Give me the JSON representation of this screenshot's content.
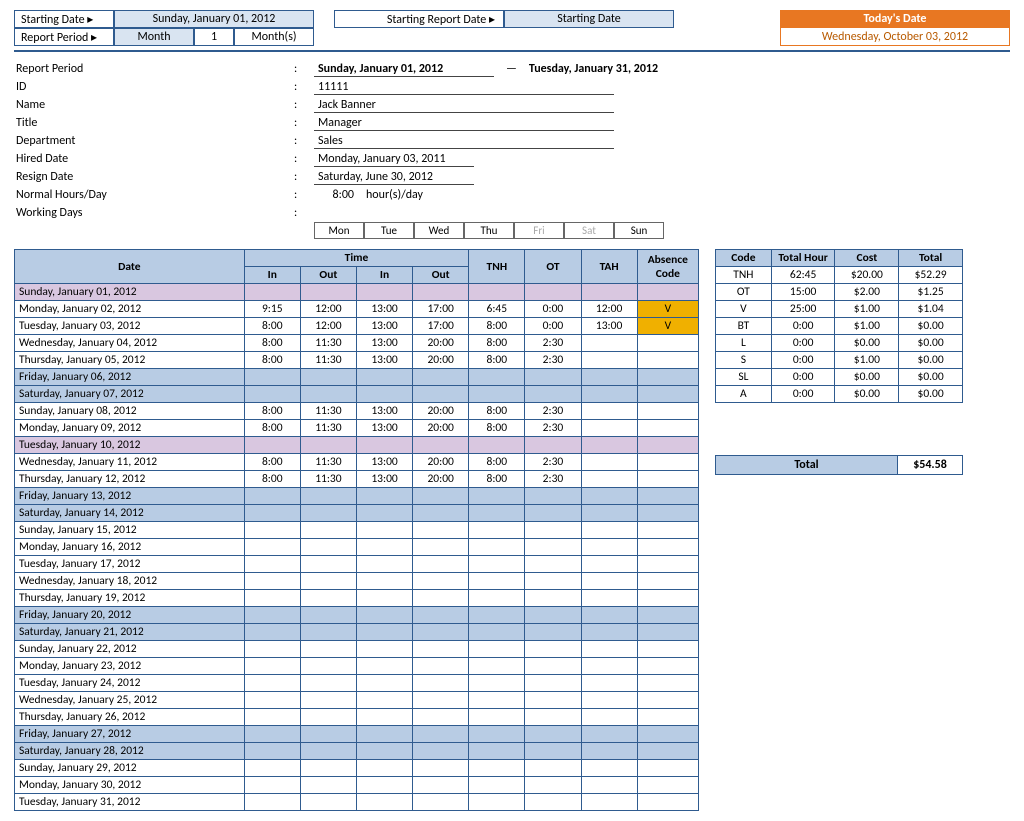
{
  "header": {
    "starting_date_label": "Starting Date ▸",
    "starting_date_value": "Sunday, January 01, 2012",
    "starting_report_label": "Starting Report Date ▸",
    "starting_report_value": "Starting Date",
    "report_period_label": "Report Period ▸",
    "period_unit": "Month",
    "period_qty": "1",
    "period_suffix": "Month(s)",
    "today_label": "Today's Date",
    "today_value": "Wednesday, October 03, 2012"
  },
  "info": {
    "report_period_lbl": "Report Period",
    "report_period_from": "Sunday, January 01, 2012",
    "report_period_sep": "—",
    "report_period_to": "Tuesday, January 31, 2012",
    "id_lbl": "ID",
    "id_val": "11111",
    "name_lbl": "Name",
    "name_val": "Jack Banner",
    "title_lbl": "Title",
    "title_val": "Manager",
    "dept_lbl": "Department",
    "dept_val": "Sales",
    "hired_lbl": "Hired Date",
    "hired_val": "Monday, January 03, 2011",
    "resign_lbl": "Resign Date",
    "resign_val": "Saturday, June 30, 2012",
    "hours_lbl": "Normal Hours/Day",
    "hours_val": "8:00",
    "hours_suffix": "hour(s)/day",
    "days_lbl": "Working Days",
    "days": [
      {
        "d": "Mon",
        "on": true
      },
      {
        "d": "Tue",
        "on": true
      },
      {
        "d": "Wed",
        "on": true
      },
      {
        "d": "Thu",
        "on": true
      },
      {
        "d": "Fri",
        "on": false
      },
      {
        "d": "Sat",
        "on": false
      },
      {
        "d": "Sun",
        "on": true
      }
    ]
  },
  "main_table": {
    "headers": {
      "date": "Date",
      "time": "Time",
      "in": "In",
      "out": "Out",
      "tnh": "TNH",
      "ot": "OT",
      "tah": "TAH",
      "abs": "Absence Code"
    },
    "rows": [
      {
        "date": "Sunday, January 01, 2012",
        "cls": "purple"
      },
      {
        "date": "Monday, January 02, 2012",
        "in1": "9:15",
        "out1": "12:00",
        "in2": "13:00",
        "out2": "17:00",
        "tnh": "6:45",
        "ot": "0:00",
        "tah": "12:00",
        "abs": "V",
        "abs_yellow": true
      },
      {
        "date": "Tuesday, January 03, 2012",
        "in1": "8:00",
        "out1": "12:00",
        "in2": "13:00",
        "out2": "17:00",
        "tnh": "8:00",
        "ot": "0:00",
        "tah": "13:00",
        "abs": "V",
        "abs_yellow": true
      },
      {
        "date": "Wednesday, January 04, 2012",
        "in1": "8:00",
        "out1": "11:30",
        "in2": "13:00",
        "out2": "20:00",
        "tnh": "8:00",
        "ot": "2:30"
      },
      {
        "date": "Thursday, January 05, 2012",
        "in1": "8:00",
        "out1": "11:30",
        "in2": "13:00",
        "out2": "20:00",
        "tnh": "8:00",
        "ot": "2:30"
      },
      {
        "date": "Friday, January 06, 2012",
        "cls": "shade"
      },
      {
        "date": "Saturday, January 07, 2012",
        "cls": "shade"
      },
      {
        "date": "Sunday, January 08, 2012",
        "in1": "8:00",
        "out1": "11:30",
        "in2": "13:00",
        "out2": "20:00",
        "tnh": "8:00",
        "ot": "2:30"
      },
      {
        "date": "Monday, January 09, 2012",
        "in1": "8:00",
        "out1": "11:30",
        "in2": "13:00",
        "out2": "20:00",
        "tnh": "8:00",
        "ot": "2:30"
      },
      {
        "date": "Tuesday, January 10, 2012",
        "cls": "purple"
      },
      {
        "date": "Wednesday, January 11, 2012",
        "in1": "8:00",
        "out1": "11:30",
        "in2": "13:00",
        "out2": "20:00",
        "tnh": "8:00",
        "ot": "2:30"
      },
      {
        "date": "Thursday, January 12, 2012",
        "in1": "8:00",
        "out1": "11:30",
        "in2": "13:00",
        "out2": "20:00",
        "tnh": "8:00",
        "ot": "2:30"
      },
      {
        "date": "Friday, January 13, 2012",
        "cls": "shade"
      },
      {
        "date": "Saturday, January 14, 2012",
        "cls": "shade"
      },
      {
        "date": "Sunday, January 15, 2012"
      },
      {
        "date": "Monday, January 16, 2012"
      },
      {
        "date": "Tuesday, January 17, 2012"
      },
      {
        "date": "Wednesday, January 18, 2012"
      },
      {
        "date": "Thursday, January 19, 2012"
      },
      {
        "date": "Friday, January 20, 2012",
        "cls": "shade"
      },
      {
        "date": "Saturday, January 21, 2012",
        "cls": "shade"
      },
      {
        "date": "Sunday, January 22, 2012"
      },
      {
        "date": "Monday, January 23, 2012"
      },
      {
        "date": "Tuesday, January 24, 2012"
      },
      {
        "date": "Wednesday, January 25, 2012"
      },
      {
        "date": "Thursday, January 26, 2012"
      },
      {
        "date": "Friday, January 27, 2012",
        "cls": "shade"
      },
      {
        "date": "Saturday, January 28, 2012",
        "cls": "shade"
      },
      {
        "date": "Sunday, January 29, 2012"
      },
      {
        "date": "Monday, January 30, 2012"
      },
      {
        "date": "Tuesday, January 31, 2012"
      }
    ]
  },
  "summary_table": {
    "headers": {
      "code": "Code",
      "hour": "Total Hour",
      "cost": "Cost",
      "total": "Total"
    },
    "rows": [
      {
        "code": "TNH",
        "hour": "62:45",
        "cost": "$20.00",
        "total": "$52.29"
      },
      {
        "code": "OT",
        "hour": "15:00",
        "cost": "$2.00",
        "total": "$1.25"
      },
      {
        "code": "V",
        "hour": "25:00",
        "cost": "$1.00",
        "total": "$1.04"
      },
      {
        "code": "BT",
        "hour": "0:00",
        "cost": "$1.00",
        "total": "$0.00"
      },
      {
        "code": "L",
        "hour": "0:00",
        "cost": "$0.00",
        "total": "$0.00"
      },
      {
        "code": "S",
        "hour": "0:00",
        "cost": "$1.00",
        "total": "$0.00"
      },
      {
        "code": "SL",
        "hour": "0:00",
        "cost": "$0.00",
        "total": "$0.00"
      },
      {
        "code": "A",
        "hour": "0:00",
        "cost": "$0.00",
        "total": "$0.00"
      }
    ]
  },
  "grand_total": {
    "label": "Total",
    "value": "$54.58"
  },
  "colors": {
    "header_blue": "#b8cce4",
    "border": "#2f5b8f",
    "purple": "#d9c7e0",
    "yellow": "#f0b000",
    "orange": "#e87722"
  }
}
